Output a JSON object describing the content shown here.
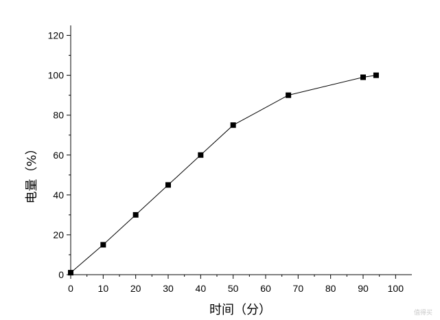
{
  "chart_data": {
    "type": "line",
    "title": "",
    "xlabel": "时间（分）",
    "ylabel": "电量（%）",
    "xlim": [
      0,
      105
    ],
    "ylim": [
      0,
      125
    ],
    "x_ticks": [
      "0",
      "10",
      "20",
      "30",
      "40",
      "50",
      "60",
      "70",
      "80",
      "90",
      "100"
    ],
    "y_ticks": [
      "0",
      "20",
      "40",
      "60",
      "80",
      "100",
      "120"
    ],
    "grid": false,
    "legend": "none",
    "marker": "square",
    "series": [
      {
        "x": [
          0,
          10,
          20,
          30,
          40,
          50,
          67,
          90,
          94
        ],
        "values": [
          1,
          15,
          30,
          45,
          60,
          75,
          90,
          99,
          100
        ],
        "color": "#000000"
      }
    ]
  },
  "watermark": {
    "text": "值得买"
  }
}
